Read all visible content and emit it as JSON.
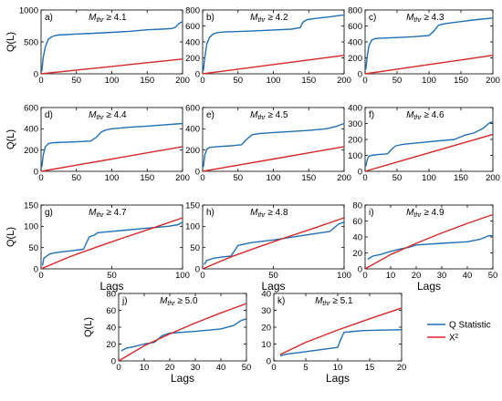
{
  "figure": {
    "colors": {
      "q_statistic": "#1f6fb5",
      "chi_square": "#d62728",
      "axis": "#000000"
    },
    "ylabel": "Q(L)",
    "xlabel": "Lags",
    "legend": {
      "position": "bottom-right",
      "entries": [
        {
          "label": "Q Statistic",
          "color": "#1f6fb5"
        },
        {
          "label": "X²",
          "color": "#d62728"
        }
      ]
    }
  },
  "chart_data": [
    {
      "type": "line",
      "panel_label": "a)",
      "threshold_text": "≥ 4.1",
      "xlim": [
        0,
        200
      ],
      "ylim": [
        0,
        1000
      ],
      "xticks": [
        0,
        50,
        100,
        150,
        200
      ],
      "yticks": [
        0,
        500,
        1000
      ],
      "show_ylabel": true,
      "show_xlabel": false,
      "series": [
        {
          "name": "Q Statistic",
          "x": [
            1,
            3,
            6,
            10,
            15,
            20,
            25,
            35,
            50,
            75,
            100,
            125,
            150,
            170,
            185,
            190,
            195,
            200
          ],
          "y": [
            40,
            250,
            420,
            540,
            580,
            600,
            610,
            615,
            625,
            635,
            650,
            665,
            690,
            700,
            710,
            730,
            790,
            820
          ]
        },
        {
          "name": "X²",
          "x": [
            0,
            50,
            100,
            150,
            200
          ],
          "y": [
            0,
            58,
            116,
            174,
            232
          ]
        }
      ]
    },
    {
      "type": "line",
      "panel_label": "b)",
      "threshold_text": "≥ 4.2",
      "xlim": [
        0,
        200
      ],
      "ylim": [
        0,
        800
      ],
      "xticks": [
        0,
        50,
        100,
        150,
        200
      ],
      "yticks": [
        0,
        200,
        400,
        600,
        800
      ],
      "show_ylabel": false,
      "show_xlabel": false,
      "series": [
        {
          "name": "Q Statistic",
          "x": [
            1,
            3,
            6,
            10,
            15,
            20,
            30,
            50,
            75,
            100,
            125,
            138,
            142,
            148,
            160,
            180,
            200
          ],
          "y": [
            40,
            200,
            380,
            460,
            500,
            515,
            525,
            530,
            540,
            550,
            560,
            580,
            650,
            680,
            695,
            715,
            740
          ]
        },
        {
          "name": "X²",
          "x": [
            0,
            50,
            100,
            150,
            200
          ],
          "y": [
            0,
            58,
            116,
            174,
            232
          ]
        }
      ]
    },
    {
      "type": "line",
      "panel_label": "c)",
      "threshold_text": "≥ 4.3",
      "xlim": [
        0,
        200
      ],
      "ylim": [
        0,
        800
      ],
      "xticks": [
        0,
        50,
        100,
        150,
        200
      ],
      "yticks": [
        0,
        200,
        400,
        600,
        800
      ],
      "show_ylabel": false,
      "show_xlabel": false,
      "series": [
        {
          "name": "Q Statistic",
          "x": [
            1,
            3,
            6,
            10,
            15,
            20,
            50,
            75,
            100,
            108,
            115,
            125,
            150,
            175,
            200
          ],
          "y": [
            50,
            200,
            350,
            420,
            440,
            445,
            455,
            465,
            480,
            540,
            610,
            630,
            655,
            680,
            700
          ]
        },
        {
          "name": "X²",
          "x": [
            0,
            50,
            100,
            150,
            200
          ],
          "y": [
            0,
            58,
            116,
            174,
            232
          ]
        }
      ]
    },
    {
      "type": "line",
      "panel_label": "d)",
      "threshold_text": "≥ 4.4",
      "xlim": [
        0,
        200
      ],
      "ylim": [
        0,
        600
      ],
      "xticks": [
        0,
        50,
        100,
        150,
        200
      ],
      "yticks": [
        0,
        200,
        400,
        600
      ],
      "show_ylabel": true,
      "show_xlabel": false,
      "series": [
        {
          "name": "Q Statistic",
          "x": [
            1,
            3,
            6,
            10,
            15,
            20,
            50,
            70,
            78,
            85,
            92,
            100,
            125,
            150,
            175,
            200
          ],
          "y": [
            40,
            150,
            230,
            260,
            268,
            270,
            278,
            285,
            320,
            370,
            390,
            400,
            415,
            425,
            438,
            450
          ]
        },
        {
          "name": "X²",
          "x": [
            0,
            50,
            100,
            150,
            200
          ],
          "y": [
            0,
            58,
            116,
            174,
            232
          ]
        }
      ]
    },
    {
      "type": "line",
      "panel_label": "e)",
      "threshold_text": "≥ 4.5",
      "xlim": [
        0,
        200
      ],
      "ylim": [
        0,
        600
      ],
      "xticks": [
        0,
        50,
        100,
        150,
        200
      ],
      "yticks": [
        0,
        200,
        400,
        600
      ],
      "show_ylabel": false,
      "show_xlabel": false,
      "series": [
        {
          "name": "Q Statistic",
          "x": [
            1,
            3,
            6,
            10,
            20,
            40,
            55,
            62,
            70,
            80,
            100,
            125,
            150,
            175,
            190,
            200
          ],
          "y": [
            40,
            150,
            210,
            225,
            232,
            240,
            250,
            300,
            345,
            355,
            365,
            375,
            385,
            400,
            425,
            450
          ]
        },
        {
          "name": "X²",
          "x": [
            0,
            50,
            100,
            150,
            200
          ],
          "y": [
            0,
            58,
            116,
            174,
            232
          ]
        }
      ]
    },
    {
      "type": "line",
      "panel_label": "f)",
      "threshold_text": "≥ 4.6",
      "xlim": [
        0,
        200
      ],
      "ylim": [
        0,
        400
      ],
      "xticks": [
        0,
        50,
        100,
        150,
        200
      ],
      "yticks": [
        0,
        100,
        200,
        300,
        400
      ],
      "show_ylabel": false,
      "show_xlabel": false,
      "series": [
        {
          "name": "Q Statistic",
          "x": [
            1,
            3,
            6,
            10,
            20,
            35,
            42,
            48,
            60,
            100,
            140,
            155,
            170,
            185,
            195,
            200
          ],
          "y": [
            30,
            70,
            95,
            100,
            105,
            110,
            140,
            160,
            170,
            185,
            200,
            225,
            240,
            270,
            305,
            310
          ]
        },
        {
          "name": "X²",
          "x": [
            0,
            50,
            100,
            150,
            200
          ],
          "y": [
            0,
            58,
            116,
            174,
            232
          ]
        }
      ]
    },
    {
      "type": "line",
      "panel_label": "g)",
      "threshold_text": "≥ 4.7",
      "xlim": [
        0,
        100
      ],
      "ylim": [
        0,
        150
      ],
      "xticks": [
        0,
        50,
        100
      ],
      "yticks": [
        0,
        50,
        100,
        150
      ],
      "show_ylabel": true,
      "show_xlabel": true,
      "series": [
        {
          "name": "Q Statistic",
          "x": [
            1,
            2,
            4,
            6,
            10,
            15,
            20,
            30,
            34,
            38,
            40,
            50,
            60,
            70,
            80,
            90,
            97,
            100
          ],
          "y": [
            8,
            25,
            30,
            35,
            38,
            40,
            42,
            46,
            75,
            80,
            85,
            88,
            91,
            94,
            97,
            100,
            104,
            110
          ]
        },
        {
          "name": "X²",
          "x": [
            0,
            20,
            40,
            60,
            80,
            100
          ],
          "y": [
            0,
            28,
            52,
            75,
            97,
            120
          ]
        }
      ]
    },
    {
      "type": "line",
      "panel_label": "h)",
      "threshold_text": "≥ 4.8",
      "xlim": [
        0,
        100
      ],
      "ylim": [
        0,
        150
      ],
      "xticks": [
        0,
        50,
        100
      ],
      "yticks": [
        0,
        50,
        100,
        150
      ],
      "show_ylabel": false,
      "show_xlabel": true,
      "series": [
        {
          "name": "Q Statistic",
          "x": [
            1,
            3,
            8,
            14,
            20,
            25,
            35,
            50,
            70,
            90,
            96,
            100
          ],
          "y": [
            10,
            20,
            25,
            28,
            30,
            55,
            62,
            68,
            78,
            88,
            105,
            110
          ]
        },
        {
          "name": "X²",
          "x": [
            0,
            20,
            40,
            60,
            80,
            100
          ],
          "y": [
            0,
            28,
            52,
            75,
            97,
            120
          ]
        }
      ]
    },
    {
      "type": "line",
      "panel_label": "i)",
      "threshold_text": "≥ 4.9",
      "xlim": [
        0,
        50
      ],
      "ylim": [
        0,
        80
      ],
      "xticks": [
        0,
        10,
        20,
        30,
        40,
        50
      ],
      "yticks": [
        0,
        20,
        40,
        60,
        80
      ],
      "show_ylabel": false,
      "show_xlabel": true,
      "series": [
        {
          "name": "Q Statistic",
          "x": [
            1,
            3,
            6,
            10,
            14,
            17,
            20,
            30,
            40,
            45,
            48,
            50
          ],
          "y": [
            12,
            16,
            18,
            22,
            25,
            27,
            30,
            32,
            34,
            37,
            41,
            42
          ]
        },
        {
          "name": "X²",
          "x": [
            0,
            10,
            20,
            30,
            40,
            50
          ],
          "y": [
            0,
            18,
            32,
            45,
            57,
            68
          ]
        }
      ]
    },
    {
      "type": "line",
      "panel_label": "j)",
      "threshold_text": "≥ 5.0",
      "xlim": [
        0,
        50
      ],
      "ylim": [
        0,
        80
      ],
      "xticks": [
        0,
        10,
        20,
        30,
        40,
        50
      ],
      "yticks": [
        0,
        20,
        40,
        60,
        80
      ],
      "show_ylabel": true,
      "show_xlabel": true,
      "series": [
        {
          "name": "Q Statistic",
          "x": [
            1,
            3,
            6,
            10,
            14,
            17,
            20,
            30,
            40,
            45,
            48,
            50
          ],
          "y": [
            12,
            15,
            17,
            20,
            22,
            30,
            33,
            35,
            38,
            42,
            48,
            50
          ]
        },
        {
          "name": "X²",
          "x": [
            0,
            10,
            20,
            30,
            40,
            50
          ],
          "y": [
            0,
            18,
            32,
            45,
            57,
            68
          ]
        }
      ]
    },
    {
      "type": "line",
      "panel_label": "k)",
      "threshold_text": "≥ 5.1",
      "xlim": [
        0,
        20
      ],
      "ylim": [
        0,
        40
      ],
      "xticks": [
        0,
        5,
        10,
        15,
        20
      ],
      "yticks": [
        0,
        10,
        20,
        30,
        40
      ],
      "show_ylabel": false,
      "show_xlabel": true,
      "series": [
        {
          "name": "Q Statistic",
          "x": [
            1,
            2,
            4,
            6,
            8,
            10,
            10.5,
            11,
            14,
            18,
            20
          ],
          "y": [
            3,
            4,
            5,
            6,
            7,
            8,
            13,
            17,
            18,
            18.3,
            18.5
          ]
        },
        {
          "name": "X²",
          "x": [
            1,
            5,
            10,
            15,
            20
          ],
          "y": [
            3.8,
            11,
            18.3,
            25,
            31.4
          ]
        }
      ]
    }
  ]
}
